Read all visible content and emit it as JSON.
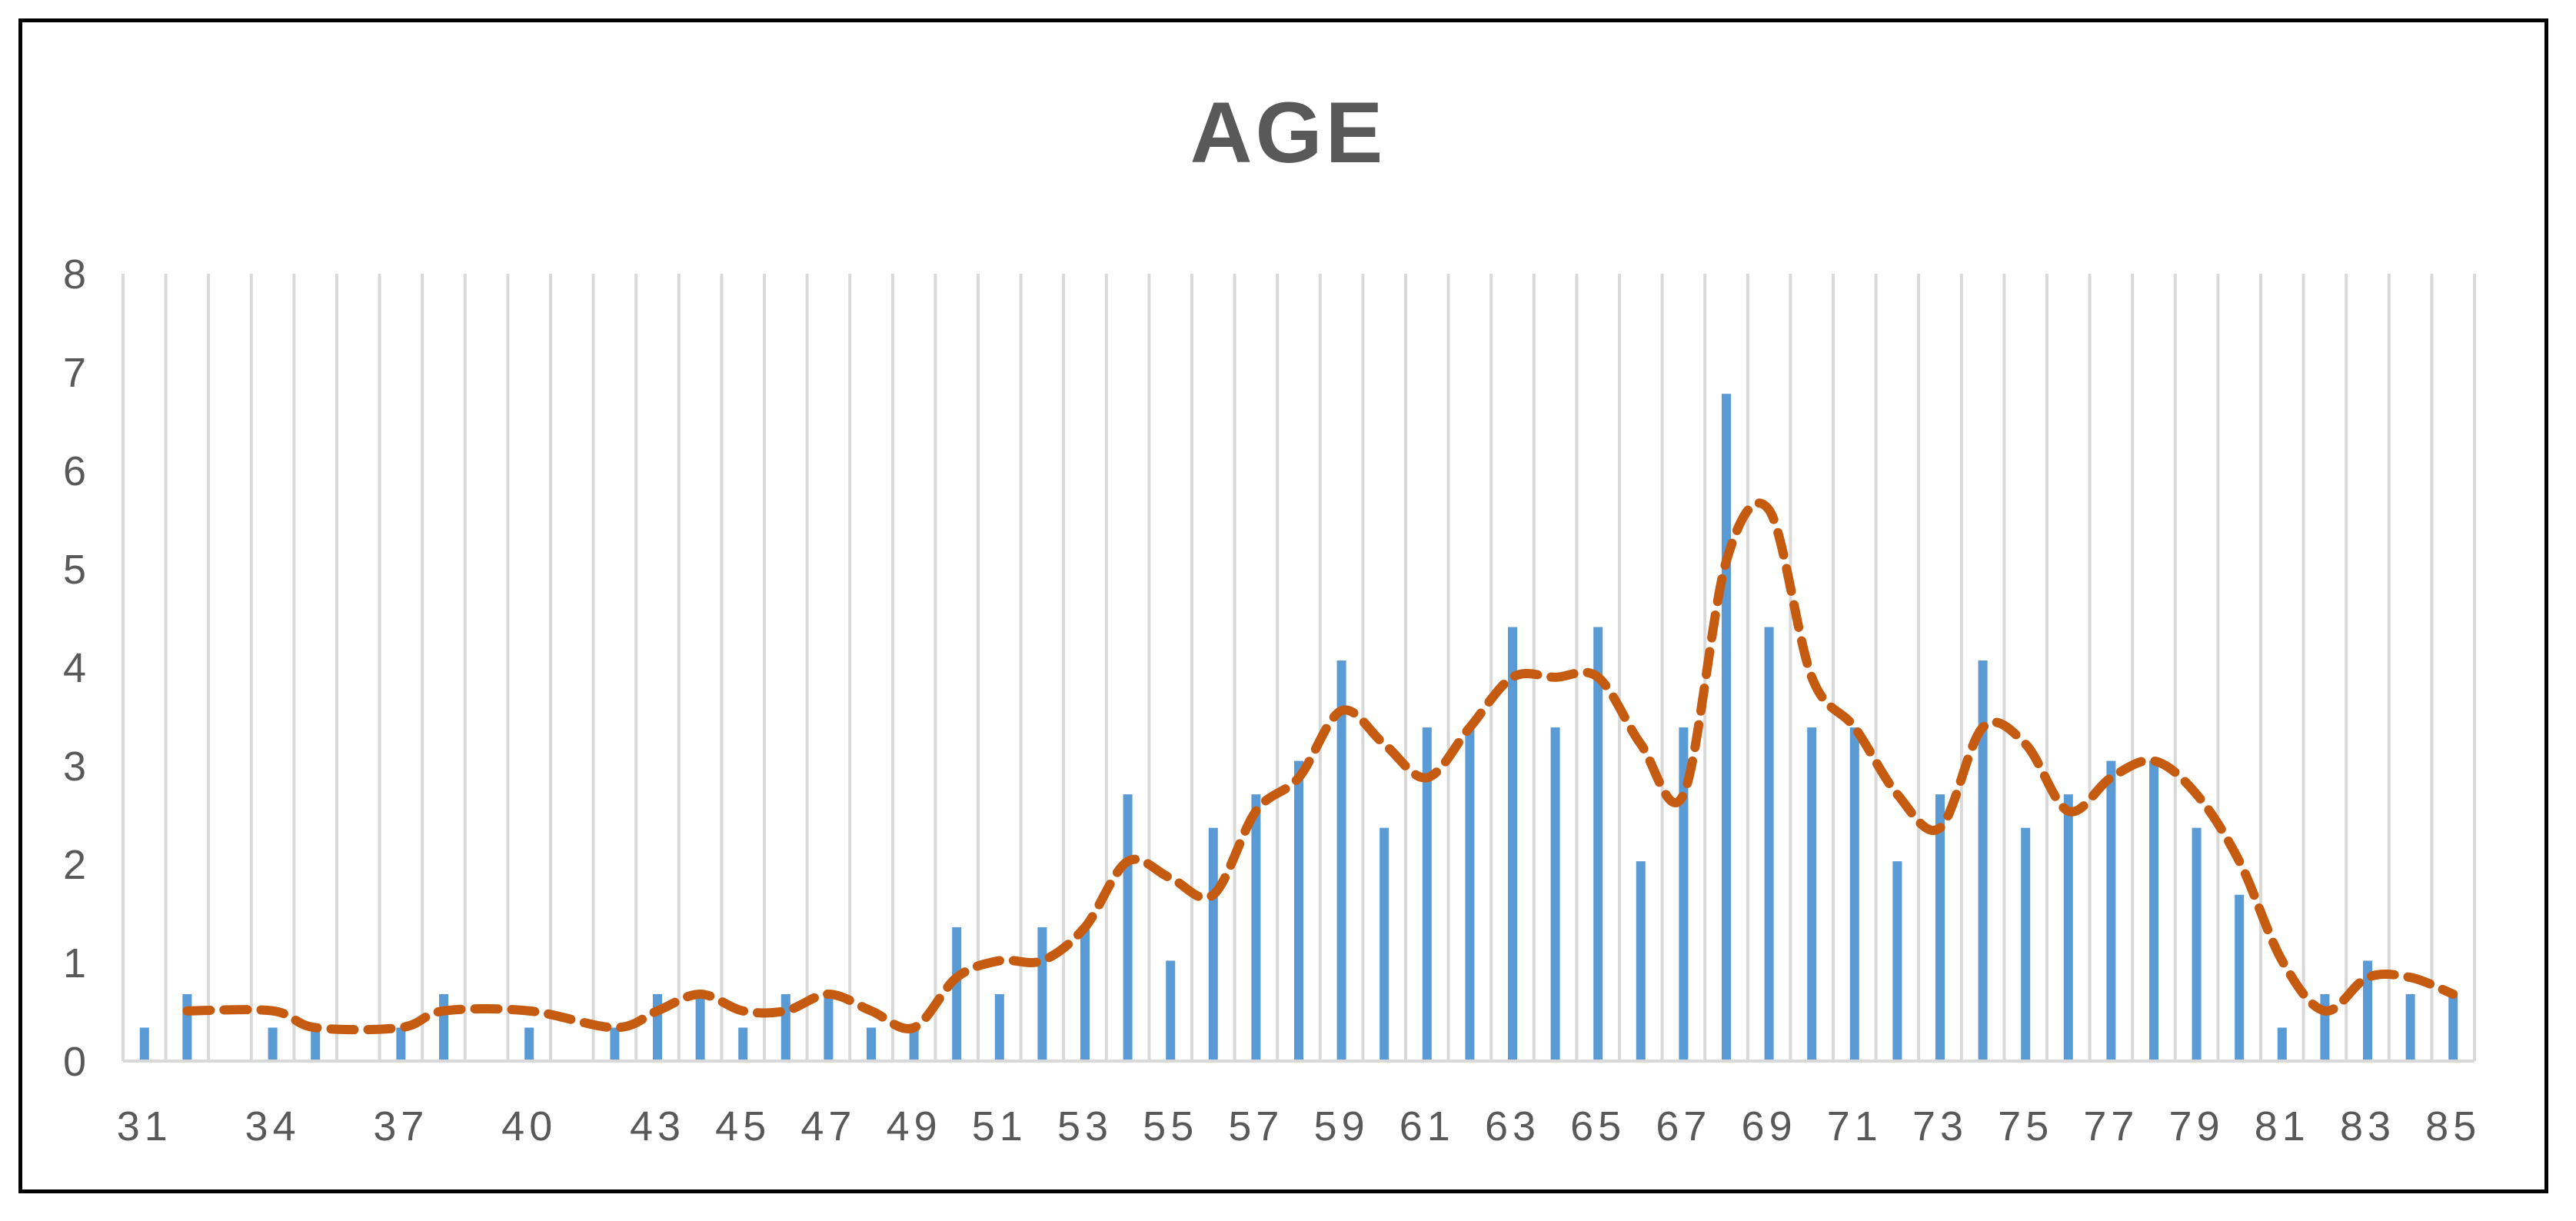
{
  "chart_data": {
    "type": "bar",
    "title": "AGE",
    "xlabel": "",
    "ylabel": "",
    "ylim": [
      0,
      8
    ],
    "y_ticks": [
      "0",
      "1",
      "2",
      "3",
      "4",
      "5",
      "6",
      "7",
      "8"
    ],
    "grid": "vertical lines between categories",
    "legend": "none",
    "categories": [
      "31",
      "32",
      "34",
      "35",
      "37",
      "38",
      "40",
      "42",
      "43",
      "44",
      "45",
      "46",
      "47",
      "48",
      "49",
      "50",
      "51",
      "52",
      "53",
      "54",
      "55",
      "56",
      "57",
      "58",
      "59",
      "60",
      "61",
      "62",
      "63",
      "64",
      "65",
      "66",
      "67",
      "68",
      "69",
      "70",
      "71",
      "72",
      "73",
      "74",
      "75",
      "76",
      "77",
      "78",
      "79",
      "80",
      "81",
      "82",
      "83",
      "84",
      "85"
    ],
    "visible_x_tick_labels": [
      "31",
      "34",
      "37",
      "40",
      "43",
      "45",
      "47",
      "49",
      "51",
      "53",
      "55",
      "57",
      "59",
      "61",
      "63",
      "65",
      "67",
      "69",
      "71",
      "73",
      "75",
      "77",
      "79",
      "81",
      "83",
      "85"
    ],
    "series": [
      {
        "type": "bar",
        "values": [
          0.34,
          0.68,
          0.34,
          0.34,
          0.34,
          0.68,
          0.34,
          0.34,
          0.68,
          0.68,
          0.34,
          0.68,
          0.68,
          0.34,
          0.34,
          1.36,
          0.68,
          1.36,
          1.36,
          2.71,
          1.02,
          2.37,
          2.71,
          3.05,
          4.07,
          2.37,
          3.39,
          3.39,
          4.41,
          3.39,
          4.41,
          2.03,
          3.39,
          6.78,
          4.41,
          3.39,
          3.39,
          2.03,
          2.71,
          4.07,
          2.37,
          2.71,
          3.05,
          3.05,
          2.37,
          1.69,
          0.34,
          0.68,
          1.02,
          0.68,
          0.68
        ]
      },
      {
        "type": "line",
        "style": "dashed moving average",
        "values": [
          null,
          0.51,
          0.51,
          0.34,
          0.34,
          0.51,
          0.51,
          0.34,
          0.51,
          0.68,
          0.51,
          0.51,
          0.68,
          0.51,
          0.34,
          0.85,
          1.02,
          1.02,
          1.36,
          2.03,
          1.86,
          1.69,
          2.54,
          2.88,
          3.56,
          3.22,
          2.88,
          3.39,
          3.9,
          3.9,
          3.9,
          3.22,
          2.71,
          5.08,
          5.6,
          3.9,
          3.39,
          2.71,
          2.37,
          3.39,
          3.22,
          2.54,
          2.88,
          3.05,
          2.71,
          2.03,
          1.02,
          0.51,
          0.85,
          0.85,
          0.68
        ]
      }
    ],
    "colors": {
      "bars": "#5B9BD5",
      "line": "#C55A11",
      "grid": "#D9D9D9",
      "text": "#595959",
      "frame": "#000000"
    }
  }
}
